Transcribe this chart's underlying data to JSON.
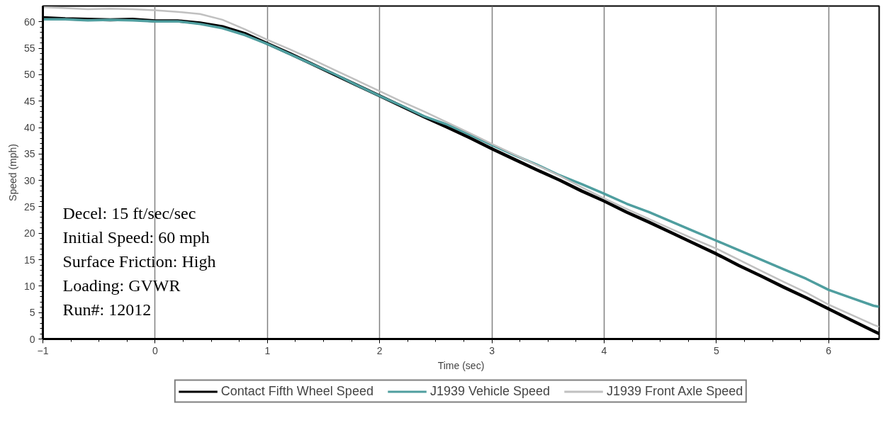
{
  "chart_data": {
    "type": "line",
    "xlabel": "Time (sec)",
    "ylabel": "Speed (mph)",
    "x": [
      -1,
      -0.8,
      -0.6,
      -0.4,
      -0.2,
      0,
      0.2,
      0.4,
      0.6,
      0.8,
      1.0,
      1.2,
      1.4,
      1.6,
      1.8,
      2.0,
      2.2,
      2.4,
      2.6,
      2.8,
      3.0,
      3.2,
      3.4,
      3.6,
      3.8,
      4.0,
      4.2,
      4.4,
      4.6,
      4.8,
      5.0,
      5.2,
      5.4,
      5.6,
      5.8,
      6.0,
      6.2,
      6.4,
      6.45
    ],
    "series": [
      {
        "name": "Contact Fifth Wheel Speed",
        "color": "#000000",
        "values": [
          60.8,
          60.6,
          60.5,
          60.4,
          60.5,
          60.2,
          60.2,
          59.8,
          59.1,
          57.8,
          55.9,
          54.0,
          52.0,
          50.0,
          48.0,
          46.0,
          44.0,
          42.0,
          40.1,
          38.1,
          36.0,
          34.0,
          32.0,
          30.1,
          28.0,
          26.1,
          24.0,
          22.1,
          20.1,
          18.1,
          16.1,
          13.9,
          11.9,
          9.8,
          7.8,
          5.7,
          3.6,
          1.5,
          1.0
        ]
      },
      {
        "name": "J1939 Vehicle Speed",
        "color": "#4f9e9f",
        "values": [
          60.5,
          60.5,
          60.3,
          60.4,
          60.3,
          60.1,
          60.1,
          59.6,
          58.8,
          57.5,
          55.8,
          53.9,
          52.0,
          50.1,
          48.0,
          46.0,
          44.1,
          42.1,
          40.6,
          38.7,
          36.7,
          34.8,
          33.0,
          31.0,
          29.3,
          27.5,
          25.6,
          24.0,
          22.2,
          20.4,
          18.6,
          16.8,
          15.0,
          13.2,
          11.4,
          9.3,
          7.8,
          6.3,
          6.1
        ]
      },
      {
        "name": "J1939 Front Axle Speed",
        "color": "#c0c0c0",
        "values": [
          62.8,
          62.6,
          62.4,
          62.5,
          62.4,
          62.2,
          61.9,
          61.5,
          60.4,
          58.6,
          56.6,
          54.8,
          52.9,
          50.9,
          48.9,
          46.9,
          44.9,
          43.0,
          41.0,
          39.0,
          36.9,
          34.9,
          32.9,
          30.9,
          28.7,
          26.6,
          24.6,
          22.7,
          20.8,
          18.9,
          17.1,
          15.0,
          12.9,
          10.8,
          8.8,
          6.5,
          4.6,
          2.7,
          2.3
        ]
      }
    ],
    "xlim": [
      -1,
      6.45
    ],
    "ylim": [
      0,
      63
    ],
    "xticks": [
      -1,
      0,
      1,
      2,
      3,
      4,
      5,
      6
    ],
    "yticks": [
      0,
      5,
      10,
      15,
      20,
      25,
      30,
      35,
      40,
      45,
      50,
      55,
      60
    ],
    "grid": "x",
    "legend": "bottom",
    "line_style": "solid",
    "annotations": [
      "Decel: 15 ft/sec/sec",
      "Initial Speed: 60 mph",
      "Surface Friction:  High",
      "Loading: GVWR",
      "Run#: 12012"
    ]
  }
}
